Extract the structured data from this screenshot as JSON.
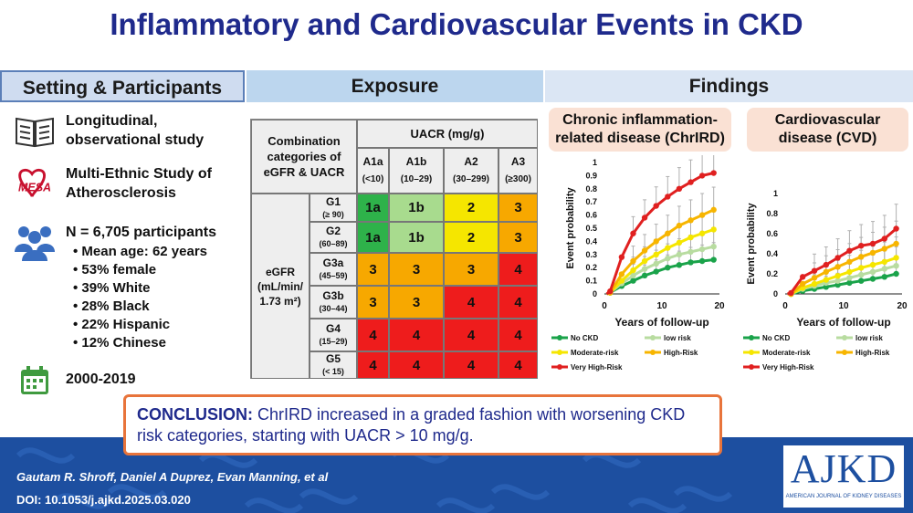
{
  "title": "Inflammatory and Cardiovascular Events in CKD",
  "headers": {
    "setting": "Setting & Participants",
    "exposure": "Exposure",
    "findings": "Findings"
  },
  "setting": {
    "study_type": [
      "Longitudinal,",
      "observational study"
    ],
    "mesa_logo_text": "MESA",
    "cohort": [
      "Multi-Ethnic Study of",
      "Atherosclerosis"
    ],
    "participants": "N = 6,705 participants",
    "bullets": [
      "Mean age: 62 years",
      "53% female",
      "39% White",
      "28% Black",
      "22% Hispanic",
      "12% Chinese"
    ],
    "period": "2000-2019"
  },
  "matrix": {
    "corner": "Combination categories of eGFR & UACR",
    "uacr_header": "UACR (mg/g)",
    "columns": [
      {
        "name": "A1a",
        "range": "(<10)"
      },
      {
        "name": "A1b",
        "range": "(10–29)"
      },
      {
        "name": "A2",
        "range": "(30–299)"
      },
      {
        "name": "A3",
        "range": "(≥300)"
      }
    ],
    "egfr_label": [
      "eGFR",
      "(mL/min/",
      "1.73 m²)"
    ],
    "rows": [
      {
        "name": "G1",
        "range": "(≥ 90)",
        "values": [
          "1a",
          "1b",
          "2",
          "3"
        ]
      },
      {
        "name": "G2",
        "range": "(60–89)",
        "values": [
          "1a",
          "1b",
          "2",
          "3"
        ]
      },
      {
        "name": "G3a",
        "range": "(45–59)",
        "values": [
          "3",
          "3",
          "3",
          "4"
        ]
      },
      {
        "name": "G3b",
        "range": "(30–44)",
        "values": [
          "3",
          "3",
          "4",
          "4"
        ]
      },
      {
        "name": "G4",
        "range": "(15–29)",
        "values": [
          "4",
          "4",
          "4",
          "4"
        ]
      },
      {
        "name": "G5",
        "range": "(< 15)",
        "values": [
          "4",
          "4",
          "4",
          "4"
        ]
      }
    ]
  },
  "findings": {
    "chrird_title": "Chronic inflammation-related disease (ChrIRD)",
    "cvd_title": "Cardiovascular disease (CVD)"
  },
  "colors": {
    "no_ckd": "#1aa34a",
    "low_risk": "#b8dca0",
    "moderate_risk": "#f5e600",
    "high_risk": "#f7b500",
    "very_high_risk": "#e02020",
    "title_blue": "#1f2a8c",
    "footer_blue": "#1d4fa0",
    "conclusion_border": "#e8743b"
  },
  "chart_data": [
    {
      "type": "line",
      "title": "",
      "xlabel": "Years of follow-up",
      "ylabel": "Event probability",
      "xlim": [
        0,
        20
      ],
      "ylim": [
        0,
        1
      ],
      "x_ticks": [
        "0",
        "10",
        "20"
      ],
      "y_ticks": [
        "0",
        "0.1",
        "0.2",
        "0.3",
        "0.4",
        "0.5",
        "0.6",
        "0.7",
        "0.8",
        "0.9",
        "1"
      ],
      "x": [
        1,
        3,
        5,
        7,
        9,
        11,
        13,
        15,
        17,
        19
      ],
      "series": [
        {
          "name": "No CKD",
          "values": [
            0.01,
            0.06,
            0.1,
            0.14,
            0.17,
            0.2,
            0.22,
            0.24,
            0.25,
            0.26
          ]
        },
        {
          "name": "low risk",
          "values": [
            0.01,
            0.08,
            0.14,
            0.19,
            0.23,
            0.27,
            0.3,
            0.32,
            0.34,
            0.36
          ]
        },
        {
          "name": "Moderate-risk",
          "values": [
            0.01,
            0.1,
            0.18,
            0.25,
            0.3,
            0.35,
            0.39,
            0.43,
            0.46,
            0.49
          ]
        },
        {
          "name": "High-Risk",
          "values": [
            0.01,
            0.15,
            0.25,
            0.33,
            0.4,
            0.46,
            0.52,
            0.56,
            0.6,
            0.64
          ]
        },
        {
          "name": "Very High-Risk",
          "values": [
            0.02,
            0.28,
            0.46,
            0.58,
            0.67,
            0.74,
            0.8,
            0.85,
            0.9,
            0.92
          ]
        }
      ],
      "legend": [
        "No CKD",
        "low risk",
        "Moderate-risk",
        "High-Risk",
        "Very High-Risk"
      ]
    },
    {
      "type": "line",
      "title": "",
      "xlabel": "Years of follow-up",
      "ylabel": "Event probability",
      "xlim": [
        0,
        20
      ],
      "ylim": [
        0,
        1
      ],
      "x_ticks": [
        "0",
        "10",
        "20"
      ],
      "y_ticks": [
        "0",
        "0.2",
        "0.4",
        "0.6",
        "0.8",
        "1"
      ],
      "x": [
        1,
        3,
        5,
        7,
        9,
        11,
        13,
        15,
        17,
        19
      ],
      "series": [
        {
          "name": "No CKD",
          "values": [
            0.0,
            0.03,
            0.05,
            0.07,
            0.09,
            0.11,
            0.13,
            0.15,
            0.17,
            0.2
          ]
        },
        {
          "name": "low risk",
          "values": [
            0.0,
            0.05,
            0.08,
            0.11,
            0.13,
            0.16,
            0.19,
            0.22,
            0.25,
            0.28
          ]
        },
        {
          "name": "Moderate-risk",
          "values": [
            0.0,
            0.06,
            0.1,
            0.14,
            0.18,
            0.22,
            0.26,
            0.29,
            0.32,
            0.36
          ]
        },
        {
          "name": "High-Risk",
          "values": [
            0.0,
            0.1,
            0.16,
            0.22,
            0.27,
            0.32,
            0.37,
            0.41,
            0.45,
            0.5
          ]
        },
        {
          "name": "Very High-Risk",
          "values": [
            0.01,
            0.17,
            0.23,
            0.29,
            0.36,
            0.43,
            0.48,
            0.5,
            0.55,
            0.65
          ]
        }
      ],
      "legend": [
        "No CKD",
        "low risk",
        "Moderate-risk",
        "High-Risk",
        "Very High-Risk"
      ]
    }
  ],
  "conclusion": {
    "label": "CONCLUSION:",
    "text": " ChrIRD increased in a graded fashion with worsening CKD risk categories, starting with UACR > 10 mg/g."
  },
  "footer": {
    "authors": "Gautam R. Shroff, Daniel A Duprez, Evan Manning, et al",
    "doi": "DOI: 10.1053/j.ajkd.2025.03.020",
    "logo": "AJKD",
    "logo_sub": "AMERICAN JOURNAL OF KIDNEY DISEASES"
  }
}
